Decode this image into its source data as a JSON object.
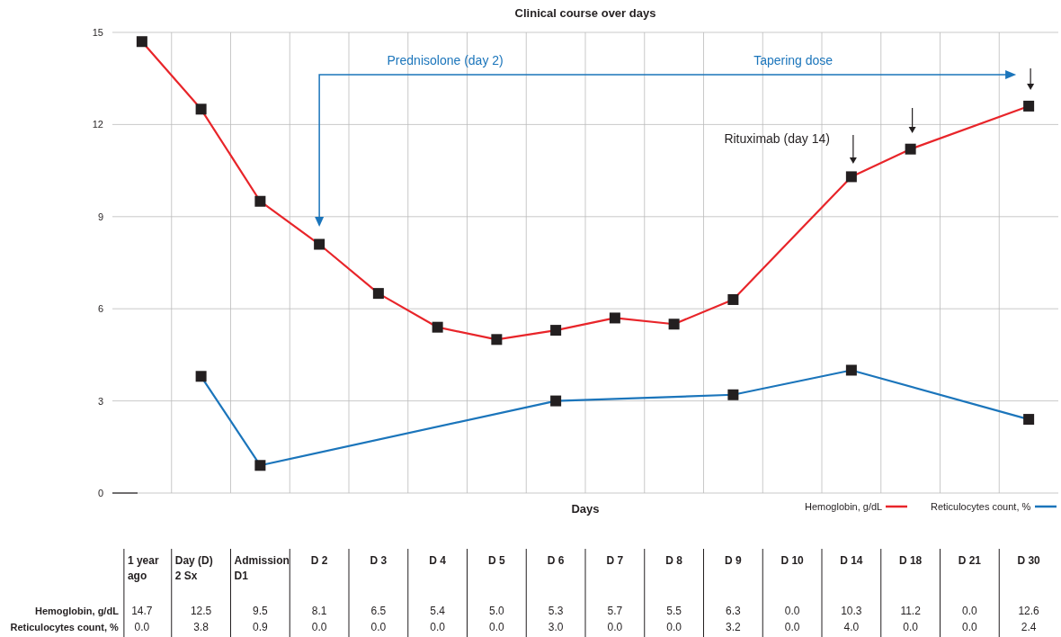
{
  "chart_data": {
    "type": "line",
    "title": "Clinical course over days",
    "xlabel": "Days",
    "categories": [
      "1 year ago",
      "Day (D) 2 Sx",
      "Admission D1",
      "D 2",
      "D 3",
      "D 4",
      "D 5",
      "D 6",
      "D 7",
      "D 8",
      "D 9",
      "D 10",
      "D 14",
      "D 18",
      "D 21",
      "D 30"
    ],
    "series": [
      {
        "name": "Hemoglobin, g/dL",
        "color": "#e8252a",
        "values": [
          14.7,
          12.5,
          9.5,
          8.1,
          6.5,
          5.4,
          5.0,
          5.3,
          5.7,
          5.5,
          6.3,
          null,
          10.3,
          11.2,
          null,
          12.6
        ],
        "value_labels": [
          "14.7",
          "12.5",
          "9.5",
          "8.1",
          "6.5",
          "5.4",
          "5.0",
          "5.3",
          "5.7",
          "5.5",
          "6.3",
          "0.0",
          "10.3",
          "11.2",
          "0.0",
          "12.6"
        ]
      },
      {
        "name": "Reticulocytes count, %",
        "color": "#1b75bb",
        "values": [
          null,
          3.8,
          0.9,
          null,
          null,
          null,
          null,
          3.0,
          null,
          null,
          3.2,
          null,
          4.0,
          null,
          null,
          2.4
        ],
        "value_labels": [
          "0.0",
          "3.8",
          "0.9",
          "0.0",
          "0.0",
          "0.0",
          "0.0",
          "3.0",
          "0.0",
          "0.0",
          "3.2",
          "0.0",
          "4.0",
          "0.0",
          "0.0",
          "2.4"
        ]
      }
    ],
    "ylim": [
      0,
      15
    ],
    "yticks": [
      0,
      3,
      6,
      9,
      12,
      15
    ],
    "grid": true,
    "marker": "square",
    "line_style": "solid",
    "legend": "bottom right",
    "annotations": [
      "Prednisolone (day 2)",
      "Tapering dose",
      "Rituximab (day 14)"
    ]
  }
}
